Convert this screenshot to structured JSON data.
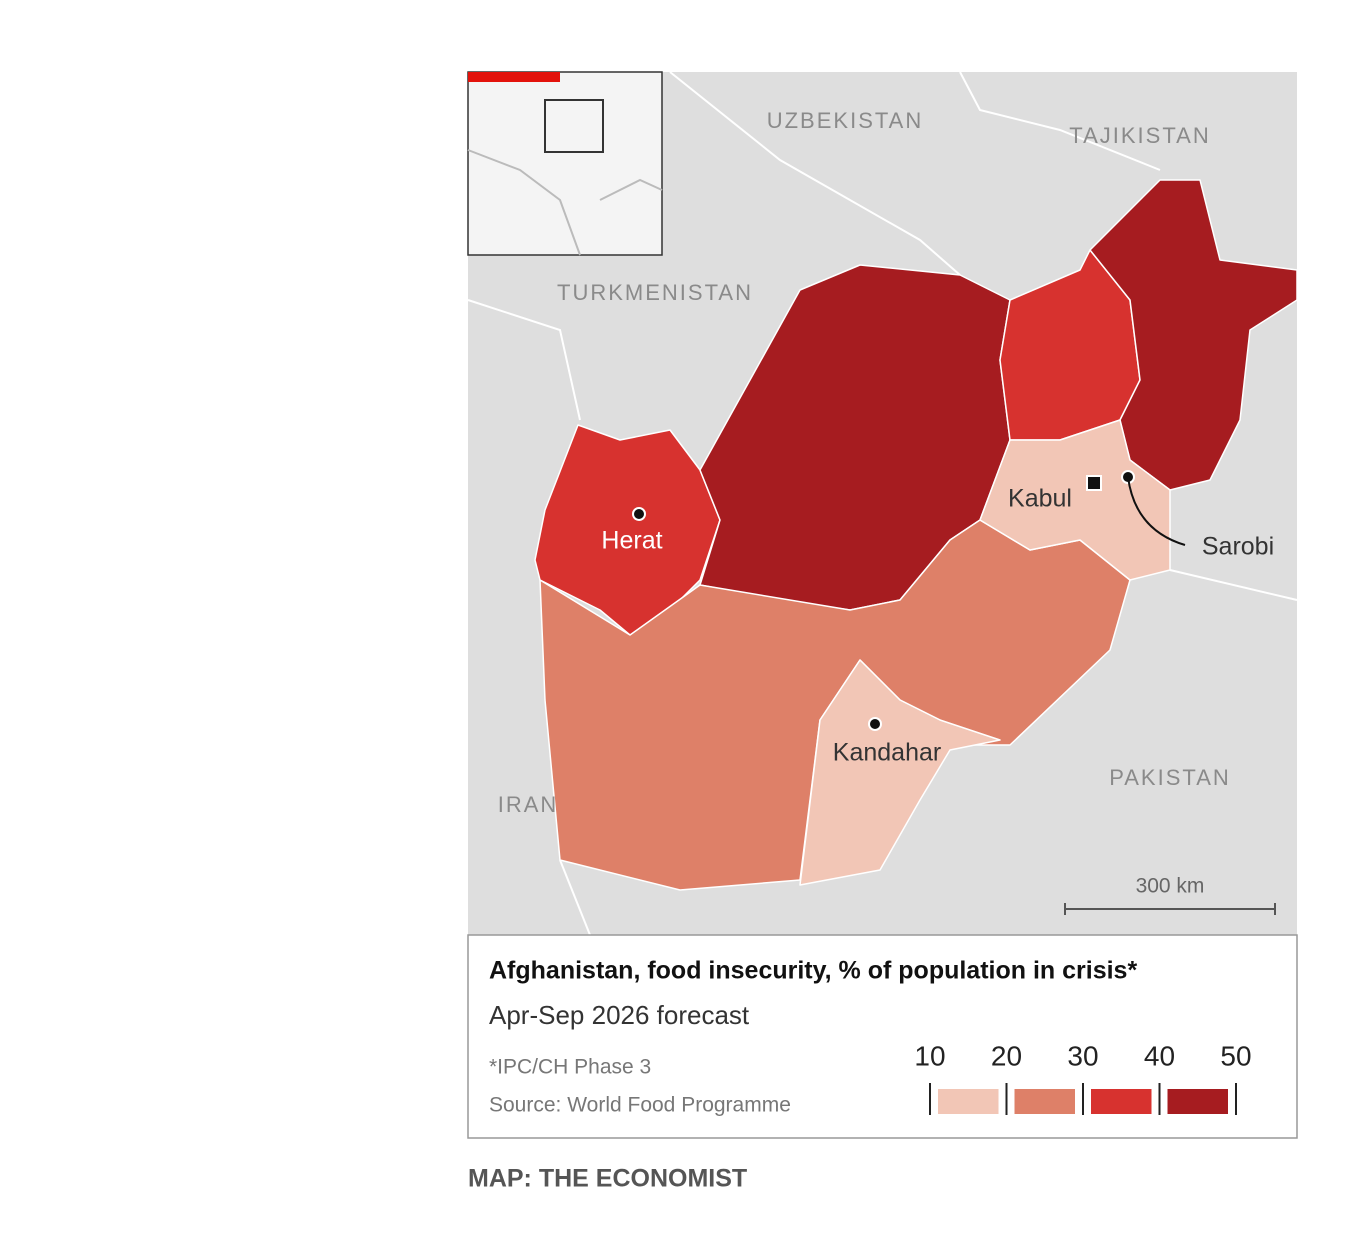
{
  "map": {
    "countries": [
      "UZBEKISTAN",
      "TAJIKISTAN",
      "TURKMENISTAN",
      "IRAN",
      "PAKISTAN"
    ],
    "cities": [
      "Herat",
      "Kabul",
      "Sarobi",
      "Kandahar"
    ],
    "scale": "300 km"
  },
  "legend": {
    "title": "Afghanistan, food insecurity, % of population in crisis*",
    "subtitle": "Apr-Sep 2026 forecast",
    "footnote": "*IPC/CH Phase 3",
    "source": "Source: World Food Programme",
    "ticks": [
      10,
      20,
      30,
      40,
      50
    ],
    "colors": [
      "#f2c6b6",
      "#de8068",
      "#d7322f",
      "#a61c20"
    ]
  },
  "credit": "MAP: THE ECONOMIST"
}
